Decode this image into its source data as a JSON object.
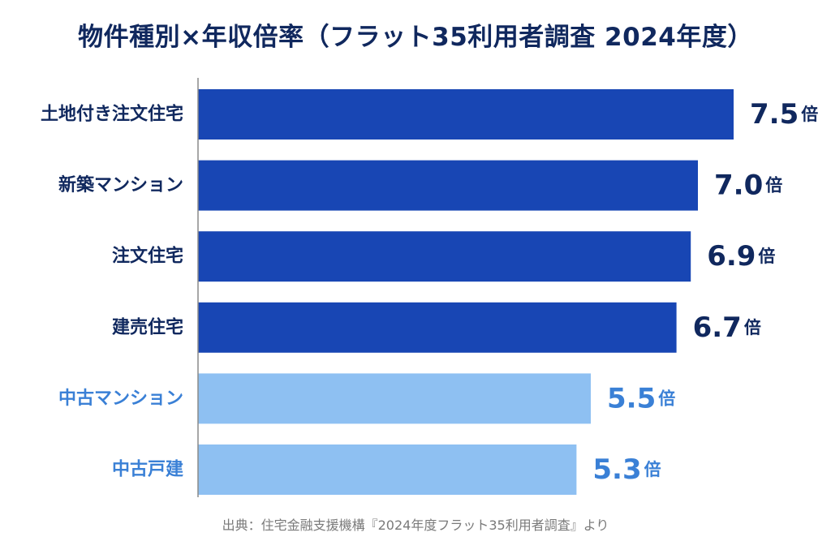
{
  "chart_data": {
    "type": "bar",
    "orientation": "horizontal",
    "title": "物件種別×年収倍率（フラット35利用者調査 2024年度）",
    "categories": [
      "土地付き注文住宅",
      "新築マンション",
      "注文住宅",
      "建売住宅",
      "中古マンション",
      "中古戸建"
    ],
    "values": [
      7.5,
      7.0,
      6.9,
      6.7,
      5.5,
      5.3
    ],
    "value_labels": [
      "7.5",
      "7.0",
      "6.9",
      "6.7",
      "5.5",
      "5.3"
    ],
    "unit": "倍",
    "xlim": [
      0,
      7.5
    ],
    "grid": false,
    "legend": "none",
    "colors": {
      "new": "#1846b4",
      "used": "#8ec0f2",
      "label_new": "#10285e",
      "label_used": "#3a80d6",
      "axis": "#8a8a8a"
    },
    "bar_groups": [
      "new",
      "new",
      "new",
      "new",
      "used",
      "used"
    ],
    "source": "出典：住宅金融支援機構『2024年度フラット35利用者調査』より"
  }
}
